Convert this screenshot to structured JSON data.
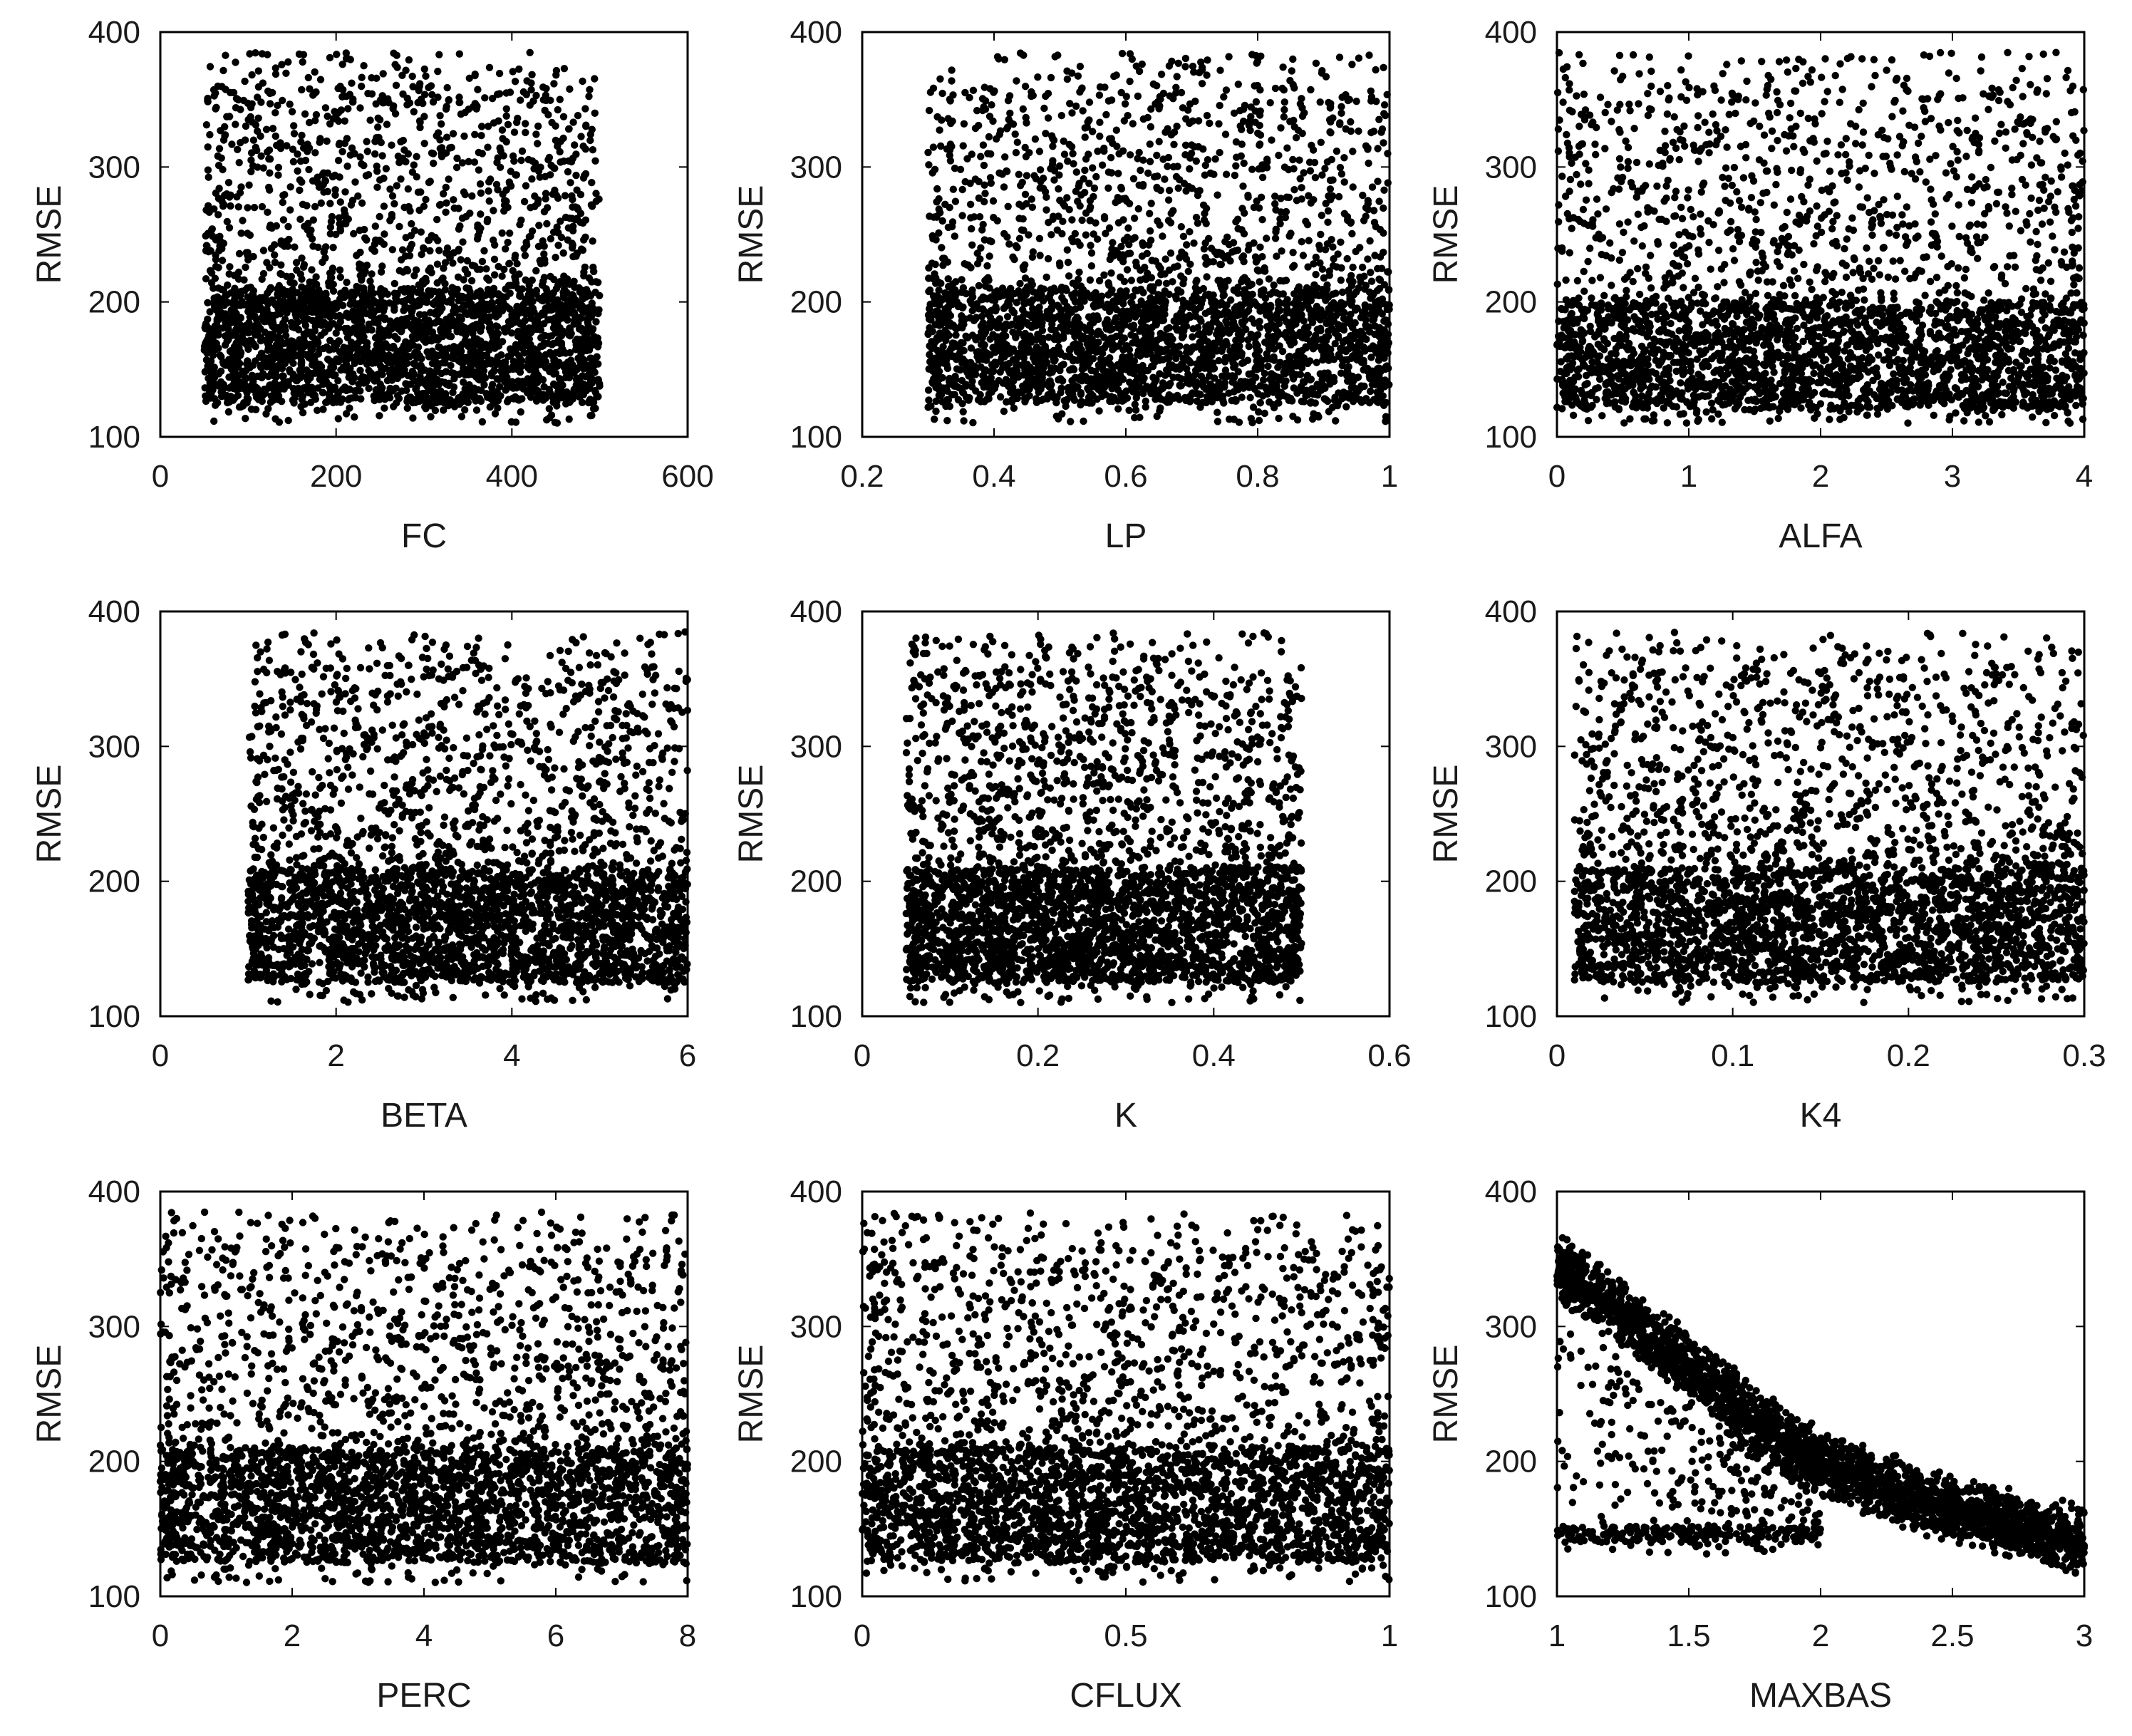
{
  "chart_data": [
    {
      "type": "scatter",
      "title": "",
      "xlabel": "FC",
      "ylabel": "RMSE",
      "xlim": [
        0,
        600
      ],
      "ylim": [
        100,
        400
      ],
      "xticks": [
        0,
        200,
        400,
        600
      ],
      "yticks": [
        100,
        200,
        300,
        400
      ],
      "xtick_labels": [
        "0",
        "200",
        "400",
        "600"
      ],
      "ytick_labels": [
        "100",
        "200",
        "300",
        "400"
      ],
      "grid": false,
      "marker_color": "#000000",
      "x_range": [
        50,
        500
      ],
      "rmse_range": [
        110,
        385
      ],
      "dense_band": [
        125,
        210
      ]
    },
    {
      "type": "scatter",
      "title": "",
      "xlabel": "LP",
      "ylabel": "RMSE",
      "xlim": [
        0.2,
        1
      ],
      "ylim": [
        100,
        400
      ],
      "xticks": [
        0.2,
        0.4,
        0.6,
        0.8,
        1
      ],
      "yticks": [
        100,
        200,
        300,
        400
      ],
      "xtick_labels": [
        "0.2",
        "0.4",
        "0.6",
        "0.8",
        "1"
      ],
      "ytick_labels": [
        "100",
        "200",
        "300",
        "400"
      ],
      "grid": false,
      "marker_color": "#000000",
      "x_range": [
        0.3,
        1
      ],
      "rmse_range": [
        110,
        385
      ],
      "dense_band": [
        125,
        210
      ]
    },
    {
      "type": "scatter",
      "title": "",
      "xlabel": "ALFA",
      "ylabel": "RMSE",
      "xlim": [
        0,
        4
      ],
      "ylim": [
        100,
        400
      ],
      "xticks": [
        0,
        1,
        2,
        3,
        4
      ],
      "yticks": [
        100,
        200,
        300,
        400
      ],
      "xtick_labels": [
        "0",
        "1",
        "2",
        "3",
        "4"
      ],
      "ytick_labels": [
        "100",
        "200",
        "300",
        "400"
      ],
      "grid": false,
      "marker_color": "#000000",
      "x_range": [
        0,
        4
      ],
      "rmse_range": [
        110,
        385
      ],
      "dense_band": [
        120,
        200
      ]
    },
    {
      "type": "scatter",
      "title": "",
      "xlabel": "BETA",
      "ylabel": "RMSE",
      "xlim": [
        0,
        6
      ],
      "ylim": [
        100,
        400
      ],
      "xticks": [
        0,
        2,
        4,
        6
      ],
      "yticks": [
        100,
        200,
        300,
        400
      ],
      "xtick_labels": [
        "0",
        "2",
        "4",
        "6"
      ],
      "ytick_labels": [
        "100",
        "200",
        "300",
        "400"
      ],
      "grid": false,
      "marker_color": "#000000",
      "x_range": [
        1,
        6
      ],
      "rmse_range": [
        110,
        385
      ],
      "dense_band": [
        125,
        210
      ]
    },
    {
      "type": "scatter",
      "title": "",
      "xlabel": "K",
      "ylabel": "RMSE",
      "xlim": [
        0,
        0.6
      ],
      "ylim": [
        100,
        400
      ],
      "xticks": [
        0,
        0.2,
        0.4,
        0.6
      ],
      "yticks": [
        100,
        200,
        300,
        400
      ],
      "xtick_labels": [
        "0",
        "0.2",
        "0.4",
        "0.6"
      ],
      "ytick_labels": [
        "100",
        "200",
        "300",
        "400"
      ],
      "grid": false,
      "marker_color": "#000000",
      "x_range": [
        0.05,
        0.5
      ],
      "rmse_range": [
        110,
        385
      ],
      "dense_band": [
        125,
        210
      ]
    },
    {
      "type": "scatter",
      "title": "",
      "xlabel": "K4",
      "ylabel": "RMSE",
      "xlim": [
        0,
        0.3
      ],
      "ylim": [
        100,
        400
      ],
      "xticks": [
        0,
        0.1,
        0.2,
        0.3
      ],
      "yticks": [
        100,
        200,
        300,
        400
      ],
      "xtick_labels": [
        "0",
        "0.1",
        "0.2",
        "0.3"
      ],
      "ytick_labels": [
        "100",
        "200",
        "300",
        "400"
      ],
      "grid": false,
      "marker_color": "#000000",
      "x_range": [
        0.01,
        0.3
      ],
      "rmse_range": [
        110,
        385
      ],
      "dense_band": [
        125,
        210
      ]
    },
    {
      "type": "scatter",
      "title": "",
      "xlabel": "PERC",
      "ylabel": "RMSE",
      "xlim": [
        0,
        8
      ],
      "ylim": [
        100,
        400
      ],
      "xticks": [
        0,
        2,
        4,
        6,
        8
      ],
      "yticks": [
        100,
        200,
        300,
        400
      ],
      "xtick_labels": [
        "0",
        "2",
        "4",
        "6",
        "8"
      ],
      "ytick_labels": [
        "100",
        "200",
        "300",
        "400"
      ],
      "grid": false,
      "marker_color": "#000000",
      "x_range": [
        0,
        8
      ],
      "rmse_range": [
        110,
        385
      ],
      "dense_band": [
        125,
        210
      ]
    },
    {
      "type": "scatter",
      "title": "",
      "xlabel": "CFLUX",
      "ylabel": "RMSE",
      "xlim": [
        0,
        1
      ],
      "ylim": [
        100,
        400
      ],
      "xticks": [
        0,
        0.5,
        1
      ],
      "yticks": [
        100,
        200,
        300,
        400
      ],
      "xtick_labels": [
        "0",
        "0.5",
        "1"
      ],
      "ytick_labels": [
        "100",
        "200",
        "300",
        "400"
      ],
      "grid": false,
      "marker_color": "#000000",
      "x_range": [
        0,
        1
      ],
      "rmse_range": [
        110,
        385
      ],
      "dense_band": [
        125,
        210
      ]
    },
    {
      "type": "scatter",
      "title": "",
      "xlabel": "MAXBAS",
      "ylabel": "RMSE",
      "xlim": [
        1,
        3
      ],
      "ylim": [
        100,
        400
      ],
      "xticks": [
        1,
        1.5,
        2,
        2.5,
        3
      ],
      "yticks": [
        100,
        200,
        300,
        400
      ],
      "xtick_labels": [
        "1",
        "1.5",
        "2",
        "2.5",
        "3"
      ],
      "ytick_labels": [
        "100",
        "200",
        "300",
        "400"
      ],
      "grid": false,
      "marker_color": "#000000",
      "x_range": [
        1,
        3
      ],
      "rmse_range": [
        110,
        385
      ],
      "trend": {
        "x": [
          1,
          1.25,
          1.5,
          1.75,
          2,
          2.25,
          2.5,
          2.75,
          3
        ],
        "rmse_center": [
          345,
          310,
          270,
          230,
          200,
          180,
          165,
          152,
          140
        ],
        "band_halfwidth": 25
      },
      "secondary_cluster": {
        "x_range": [
          1,
          2
        ],
        "rmse_range": [
          130,
          300
        ]
      }
    }
  ]
}
